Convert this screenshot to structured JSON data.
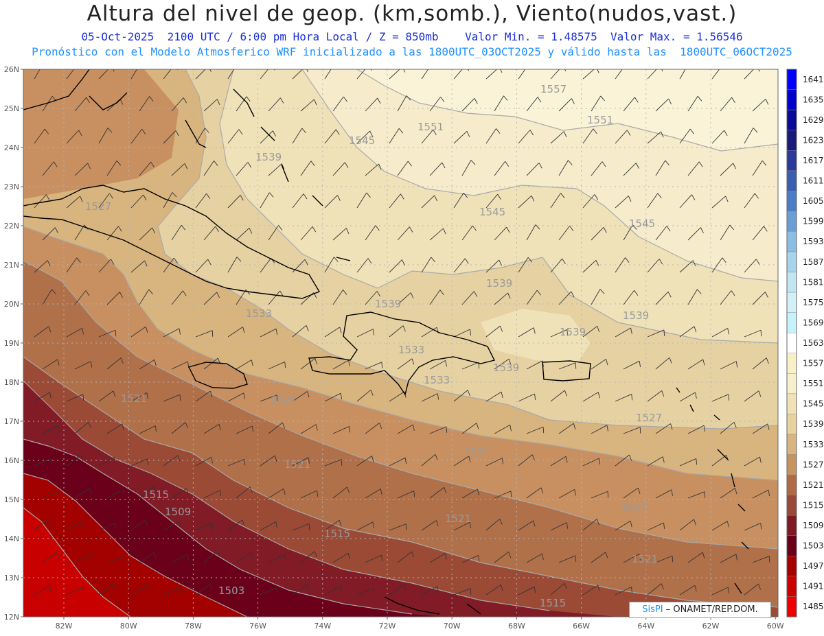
{
  "header": {
    "title": "Altura del nivel de geop. (km,somb.), Viento(nudos,vast.)",
    "subtitle_date": "05-Oct-2025",
    "subtitle_time": "2100 UTC / 6:00 pm Hora Local / Z = 850mb",
    "subtitle_min": "Valor Min. = 1.48575",
    "subtitle_max": "Valor Max. = 1.56546",
    "model_line": "Pronóstico con el Modelo Atmosferico WRF inicializado a las 1800UTC_03OCT2025 y válido hasta las  1800UTC_06OCT2025"
  },
  "map": {
    "lat_ticks": [
      "26N",
      "25N",
      "24N",
      "23N",
      "22N",
      "21N",
      "20N",
      "19N",
      "18N",
      "17N",
      "16N",
      "15N",
      "14N",
      "13N",
      "12N"
    ],
    "lon_ticks": [
      "82W",
      "80W",
      "78W",
      "76W",
      "74W",
      "72W",
      "70W",
      "68W",
      "66W",
      "64W",
      "62W",
      "60W"
    ],
    "contour_labels": [
      "1557",
      "1551",
      "1551",
      "1545",
      "1539",
      "1545",
      "1545",
      "1527",
      "1539",
      "1539",
      "1539",
      "1533",
      "1539",
      "1533",
      "1533",
      "1539",
      "1521",
      "1527",
      "1527",
      "1521",
      "1521",
      "1527",
      "1515",
      "1509",
      "1515",
      "1521",
      "1521",
      "1503",
      "1515"
    ],
    "colors": {
      "coast": "#000000",
      "contour": "#a9a9a9",
      "grid": "#bbbbbb"
    }
  },
  "colorbar": {
    "labels": [
      "1641",
      "1635",
      "1629",
      "1623",
      "1617",
      "1611",
      "1605",
      "1599",
      "1593",
      "1587",
      "1581",
      "1575",
      "1569",
      "1563",
      "1557",
      "1551",
      "1545",
      "1539",
      "1533",
      "1527",
      "1521",
      "1515",
      "1509",
      "1503",
      "1497",
      "1491",
      "1485"
    ],
    "colors": [
      "#0000ff",
      "#0000cd",
      "#0a0a96",
      "#1a1a7a",
      "#2a3a9a",
      "#3a5fb0",
      "#4a7dc4",
      "#6a9ed4",
      "#8cbde2",
      "#a6d4ec",
      "#bfe6f2",
      "#d2f0f7",
      "#c6f2fb",
      "#ffffff",
      "#f8f1c5",
      "#f8f0cd",
      "#f0e2b6",
      "#e8d2a0",
      "#d8b480",
      "#c79460",
      "#b06a46",
      "#9a4a38",
      "#7f1a25",
      "#6a0018",
      "#a60000",
      "#cc0000",
      "#ee0000"
    ]
  },
  "credit": {
    "brand": "SisPI",
    "text": " – ONAMET/REP.DOM."
  }
}
